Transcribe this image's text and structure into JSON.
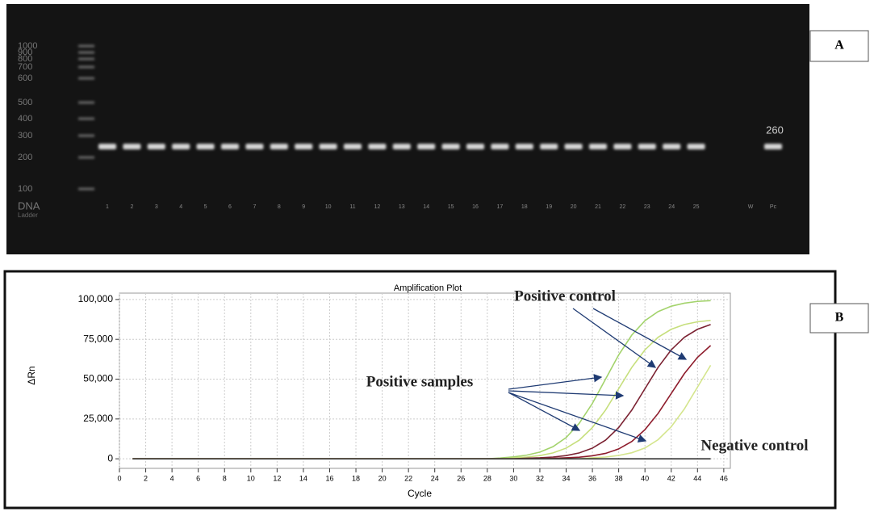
{
  "panels": {
    "a": "A",
    "b": "B"
  },
  "gel": {
    "ladder": [
      "1000",
      "900",
      "800",
      "700",
      "600",
      "500",
      "400",
      "300",
      "200",
      "100"
    ],
    "ladder_title": "DNA",
    "ladder_subtitle": "Ladder",
    "lanes": [
      "1",
      "2",
      "3",
      "4",
      "5",
      "6",
      "7",
      "8",
      "9",
      "10",
      "11",
      "12",
      "13",
      "14",
      "15",
      "16",
      "17",
      "18",
      "19",
      "20",
      "21",
      "22",
      "23",
      "24",
      "25",
      "W",
      "Pc"
    ],
    "band_label": "260"
  },
  "chart_data": {
    "type": "line",
    "title": "Amplification Plot",
    "x_label": "Cycle",
    "y_label": "ΔRn",
    "x": [
      1,
      26,
      27,
      28,
      29,
      30,
      31,
      32,
      33,
      34,
      35,
      36,
      37,
      38,
      39,
      40,
      41,
      42,
      43,
      44,
      45
    ],
    "series": [
      {
        "color": "#a3d36c",
        "values": [
          0,
          0,
          0,
          0,
          500,
          1200,
          2300,
          4200,
          7600,
          13300,
          22300,
          34800,
          50000,
          65200,
          77700,
          86700,
          92400,
          95800,
          97700,
          98800,
          99300
        ]
      },
      {
        "color": "#c6df7c",
        "values": [
          0,
          0,
          0,
          0,
          0,
          600,
          1100,
          2000,
          3700,
          6700,
          11700,
          19600,
          30600,
          44000,
          57400,
          68400,
          76300,
          81300,
          84300,
          86000,
          86900
        ]
      },
      {
        "color": "#7b2232",
        "values": [
          0,
          0,
          0,
          0,
          0,
          0,
          400,
          600,
          1100,
          2000,
          3700,
          6700,
          11700,
          19600,
          30600,
          44000,
          57400,
          68400,
          76300,
          81300,
          84300
        ]
      },
      {
        "color": "#8e1c2c",
        "values": [
          0,
          0,
          0,
          0,
          0,
          0,
          0,
          0,
          300,
          600,
          1000,
          1900,
          3400,
          6200,
          10900,
          18300,
          28500,
          41000,
          53500,
          63700,
          71100
        ]
      },
      {
        "color": "#d4e58c",
        "values": [
          0,
          0,
          0,
          0,
          0,
          0,
          0,
          0,
          0,
          0,
          0,
          600,
          1100,
          2100,
          3800,
          6800,
          12000,
          20100,
          31300,
          45000,
          58700
        ]
      },
      {
        "color": "#333333",
        "values": [
          0,
          0,
          0,
          0,
          0,
          0,
          0,
          0,
          0,
          0,
          0,
          0,
          0,
          0,
          0,
          0,
          0,
          0,
          0,
          0,
          0
        ]
      }
    ],
    "xlim": [
      0,
      46.5
    ],
    "xticks": [
      0,
      2,
      4,
      6,
      8,
      10,
      12,
      14,
      16,
      18,
      20,
      22,
      24,
      26,
      28,
      30,
      32,
      34,
      36,
      38,
      40,
      42,
      44,
      46
    ],
    "ylim": [
      -6000,
      104000
    ],
    "yticks": [
      0,
      {
        "value": 25000,
        "label": "25,000"
      },
      {
        "value": 50000,
        "label": "50,000"
      },
      {
        "value": 75000,
        "label": "75,000"
      },
      {
        "value": 100000,
        "label": "100,000"
      }
    ],
    "grid": true,
    "annotations": [
      "Positive control",
      "Positive samples",
      "Negative control"
    ]
  }
}
